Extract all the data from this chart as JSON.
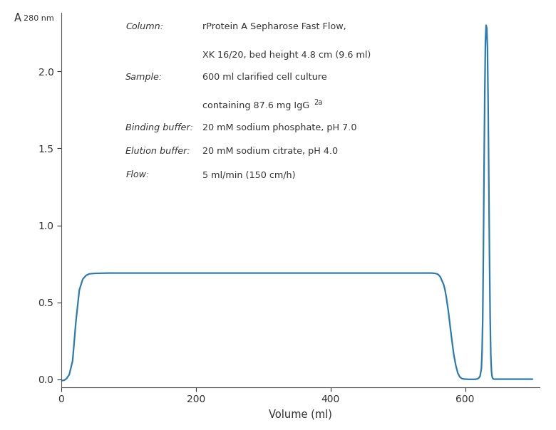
{
  "line_color": "#2B7BB0",
  "line_width": 1.6,
  "background_color": "#ffffff",
  "xlabel": "Volume (ml)",
  "xlim": [
    0,
    710
  ],
  "ylim": [
    -0.05,
    2.38
  ],
  "xticks": [
    0,
    200,
    400,
    600
  ],
  "yticks": [
    0.0,
    0.5,
    1.0,
    1.5,
    2.0
  ],
  "curve_x": [
    0,
    5,
    8,
    12,
    17,
    22,
    27,
    32,
    37,
    42,
    50,
    70,
    100,
    200,
    300,
    400,
    500,
    540,
    550,
    555,
    558,
    560,
    562,
    563,
    564,
    565,
    566,
    567,
    568,
    570,
    572,
    575,
    578,
    580,
    583,
    586,
    589,
    592,
    595,
    598,
    600,
    602,
    604,
    606,
    608,
    610,
    612,
    614,
    616,
    618,
    620,
    622,
    624,
    625,
    626,
    627,
    628,
    629,
    630,
    631,
    632,
    633,
    634,
    635,
    636,
    637,
    638,
    639,
    640,
    641,
    642,
    643,
    645,
    650,
    655,
    660,
    670,
    700
  ],
  "curve_y": [
    -0.01,
    -0.005,
    0.005,
    0.03,
    0.12,
    0.38,
    0.58,
    0.65,
    0.675,
    0.685,
    0.688,
    0.69,
    0.69,
    0.69,
    0.69,
    0.69,
    0.69,
    0.69,
    0.69,
    0.688,
    0.685,
    0.68,
    0.67,
    0.665,
    0.655,
    0.645,
    0.635,
    0.625,
    0.615,
    0.58,
    0.53,
    0.44,
    0.33,
    0.26,
    0.16,
    0.09,
    0.04,
    0.015,
    0.005,
    0.002,
    0.001,
    0.001,
    0.0,
    0.0,
    0.0,
    0.0,
    0.0,
    0.0,
    0.001,
    0.003,
    0.008,
    0.02,
    0.07,
    0.18,
    0.4,
    0.85,
    1.4,
    1.85,
    2.2,
    2.3,
    2.28,
    2.15,
    1.8,
    1.3,
    0.8,
    0.4,
    0.15,
    0.05,
    0.015,
    0.005,
    0.002,
    0.001,
    0.001,
    0.001,
    0.001,
    0.001,
    0.001,
    0.001
  ]
}
